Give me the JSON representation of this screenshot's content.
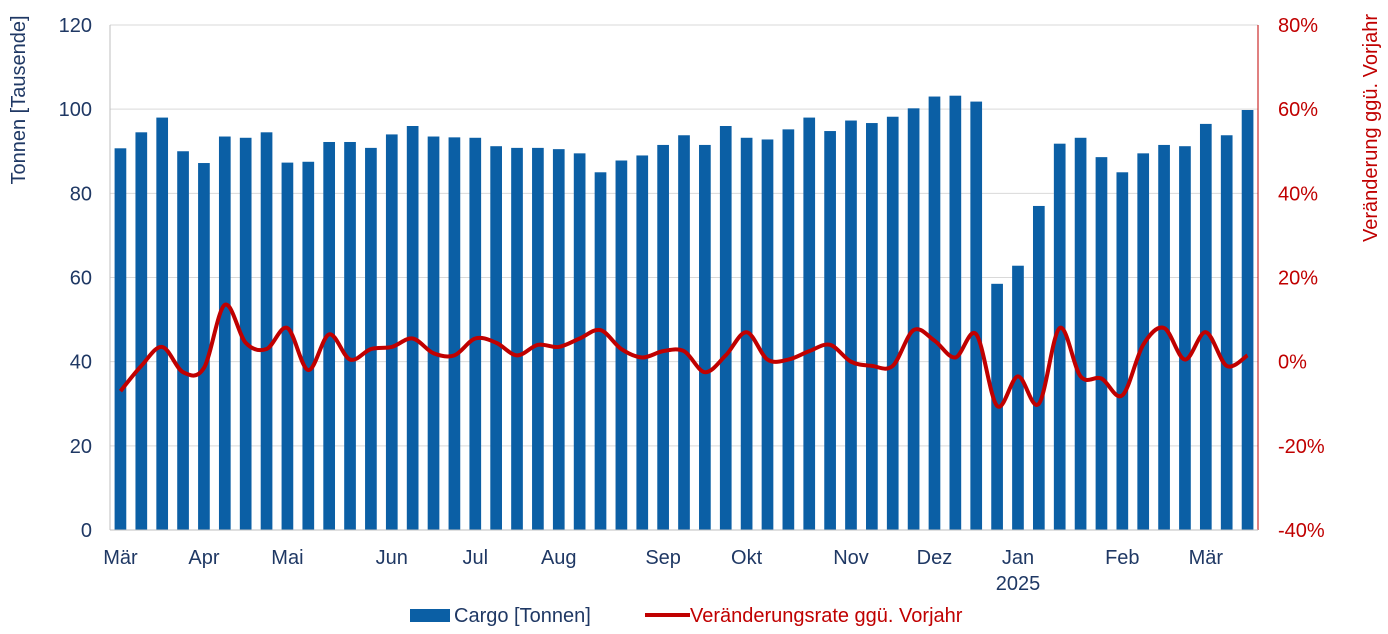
{
  "chart_data": {
    "type": "bar",
    "colors": {
      "bars": "#0b5fa5",
      "line": "#c00000",
      "left_axis_text": "#1f3864",
      "right_axis_text": "#c00000",
      "grid": "#d9d9d9"
    },
    "ylabel": "Tonnen [Tausende]",
    "y2label": "Veränderung ggü. Vorjahr",
    "ylim": [
      0,
      120
    ],
    "y2lim": [
      -40,
      80
    ],
    "yticks": [
      "0",
      "20",
      "40",
      "60",
      "80",
      "100",
      "120"
    ],
    "y2ticks": [
      "-40%",
      "-20%",
      "0%",
      "20%",
      "40%",
      "60%",
      "80%"
    ],
    "grid": true,
    "legend_position": "bottom",
    "x_labels": [
      {
        "label": "Mär",
        "index": 0
      },
      {
        "label": "Apr",
        "index": 4
      },
      {
        "label": "Mai",
        "index": 8
      },
      {
        "label": "Jun",
        "index": 13
      },
      {
        "label": "Jul",
        "index": 17
      },
      {
        "label": "Aug",
        "index": 21
      },
      {
        "label": "Sep",
        "index": 26
      },
      {
        "label": "Okt",
        "index": 30
      },
      {
        "label": "Nov",
        "index": 35
      },
      {
        "label": "Dez",
        "index": 39
      },
      {
        "label": "Jan",
        "index": 43
      },
      {
        "label": "Feb",
        "index": 48
      },
      {
        "label": "Mär",
        "index": 52
      }
    ],
    "year_label": {
      "label": "2025",
      "index": 43
    },
    "series": [
      {
        "name": "Cargo [Tonnen]",
        "type": "bar",
        "values": [
          90.7,
          94.5,
          98.0,
          90.0,
          87.2,
          93.5,
          93.2,
          94.5,
          87.3,
          87.5,
          92.2,
          92.2,
          90.8,
          94.0,
          96.0,
          93.5,
          93.3,
          93.2,
          91.2,
          90.8,
          90.8,
          90.5,
          89.5,
          85.0,
          87.8,
          89.0,
          91.5,
          93.8,
          91.5,
          96.0,
          93.2,
          92.8,
          95.2,
          98.0,
          94.8,
          97.3,
          96.7,
          98.2,
          100.2,
          103.0,
          103.2,
          101.8,
          58.5,
          62.8,
          77.0,
          91.8,
          93.2,
          88.6,
          85.0,
          89.5,
          91.5,
          91.2,
          96.5,
          93.8,
          99.8
        ]
      },
      {
        "name": "Veränderungsrate ggü. Vorjahr",
        "type": "line",
        "values": [
          -7,
          -1,
          3.5,
          -2.5,
          -1.5,
          13.5,
          4.5,
          3,
          8,
          -2,
          6.5,
          0.5,
          3,
          3.5,
          5.5,
          2,
          1.5,
          5.5,
          4.5,
          1.5,
          4,
          3.5,
          5.5,
          7.5,
          3,
          1,
          2.5,
          2.5,
          -2.5,
          1.5,
          7,
          0.5,
          0.5,
          2.5,
          4,
          0,
          -1,
          -1,
          7.5,
          5,
          1,
          6.5,
          -10.5,
          -3.5,
          -10,
          8,
          -3.5,
          -4,
          -8,
          4,
          8,
          0.5,
          7,
          -1,
          1.5
        ]
      }
    ]
  }
}
